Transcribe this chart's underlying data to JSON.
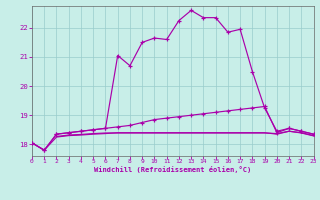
{
  "bg_color": "#c8eee8",
  "grid_color": "#99cccc",
  "line_color": "#aa00aa",
  "xlim": [
    0,
    23
  ],
  "ylim": [
    17.6,
    22.75
  ],
  "yticks": [
    18,
    19,
    20,
    21,
    22
  ],
  "xticks": [
    0,
    1,
    2,
    3,
    4,
    5,
    6,
    7,
    8,
    9,
    10,
    11,
    12,
    13,
    14,
    15,
    16,
    17,
    18,
    19,
    20,
    21,
    22,
    23
  ],
  "xlabel": "Windchill (Refroidissement éolien,°C)",
  "line1_x": [
    0,
    1,
    2,
    3,
    4,
    5,
    6,
    7,
    8,
    9,
    10,
    11,
    12,
    13,
    14,
    15,
    16,
    17,
    18,
    19,
    20,
    21,
    22,
    23
  ],
  "line1_y": [
    18.05,
    17.8,
    18.35,
    18.4,
    18.45,
    18.5,
    18.55,
    21.05,
    20.7,
    21.5,
    21.65,
    21.6,
    22.25,
    22.6,
    22.35,
    22.35,
    21.85,
    21.95,
    20.5,
    19.25,
    18.45,
    18.55,
    18.45,
    18.35
  ],
  "line2_x": [
    0,
    1,
    2,
    3,
    4,
    5,
    6,
    7,
    8,
    9,
    10,
    11,
    12,
    13,
    14,
    15,
    16,
    17,
    18,
    19,
    20,
    21,
    22,
    23
  ],
  "line2_y": [
    18.05,
    17.8,
    18.35,
    18.4,
    18.45,
    18.5,
    18.55,
    18.6,
    18.65,
    18.75,
    18.85,
    18.9,
    18.95,
    19.0,
    19.05,
    19.1,
    19.15,
    19.2,
    19.25,
    19.3,
    18.4,
    18.55,
    18.45,
    18.35
  ],
  "line3_x": [
    0,
    1,
    2,
    3,
    4,
    5,
    6,
    7,
    8,
    9,
    10,
    11,
    12,
    13,
    14,
    15,
    16,
    17,
    18,
    19,
    20,
    21,
    22,
    23
  ],
  "line3_y": [
    18.05,
    17.8,
    18.25,
    18.3,
    18.32,
    18.35,
    18.37,
    18.4,
    18.4,
    18.4,
    18.4,
    18.4,
    18.4,
    18.4,
    18.4,
    18.4,
    18.4,
    18.4,
    18.4,
    18.4,
    18.35,
    18.45,
    18.4,
    18.3
  ],
  "line4_x": [
    2,
    3,
    4,
    5,
    6,
    7,
    8,
    9,
    10,
    11,
    12,
    13,
    14,
    15,
    16,
    17,
    18,
    19,
    20,
    21,
    22,
    23
  ],
  "line4_y": [
    18.27,
    18.32,
    18.34,
    18.37,
    18.39,
    18.39,
    18.39,
    18.39,
    18.39,
    18.39,
    18.39,
    18.39,
    18.39,
    18.39,
    18.39,
    18.39,
    18.39,
    18.39,
    18.37,
    18.45,
    18.39,
    18.29
  ]
}
